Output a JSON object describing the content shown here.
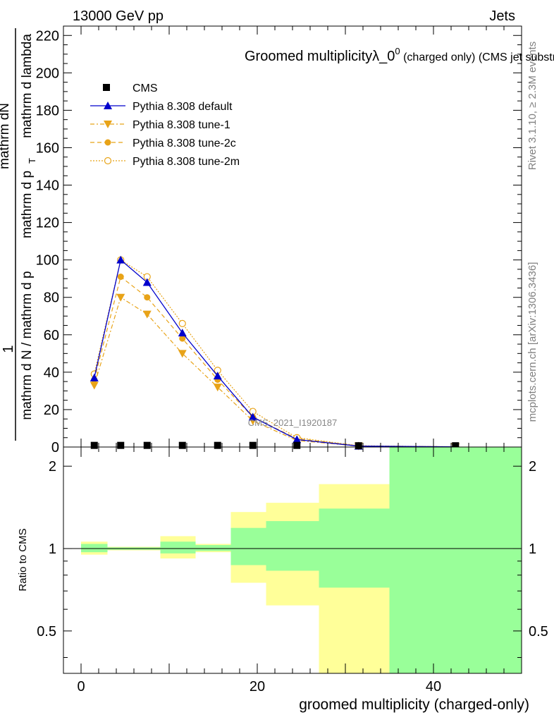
{
  "header": {
    "left": "13000 GeV pp",
    "right": "Jets"
  },
  "side_labels": {
    "rivet": "Rivet 3.1.10, ≥ 2.3M events",
    "mcplots": "mcplots.cern.ch [arXiv:1306.3436]"
  },
  "main_plot": {
    "title_main": "Groomed multiplicityλ_0",
    "title_sup": "0",
    "title_rest": " (charged only) (CMS jet substructure)",
    "ylabel_num": "1",
    "ylabel_den_top": "mathrm dN",
    "ylabel_den_line1": "mathrm d N / mathrm d p",
    "ylabel_den_line2": " mathrm d p",
    "ylabel_den_line3": " mathrm d lambda",
    "ylabel_sub": "T",
    "watermark": "CMS_2021_I1920187",
    "y_ticks": [
      "0",
      "20",
      "40",
      "60",
      "80",
      "100",
      "120",
      "140",
      "160",
      "180",
      "200",
      "220"
    ]
  },
  "ratio_plot": {
    "ylabel": "Ratio to CMS",
    "y_ticks": [
      "0.5",
      "1",
      "2"
    ],
    "x_ticks": [
      "0",
      "20",
      "40"
    ],
    "xlabel": "groomed multiplicity (charged-only)"
  },
  "legend": [
    {
      "name": "CMS"
    },
    {
      "name": "Pythia 8.308 default"
    },
    {
      "name": "Pythia 8.308 tune-1"
    },
    {
      "name": "Pythia 8.308 tune-2c"
    },
    {
      "name": "Pythia 8.308 tune-2m"
    }
  ],
  "colors": {
    "data": "#000000",
    "default": "#0000cc",
    "tunes": "#e8a317",
    "band_inner": "#99ff99",
    "band_outer": "#ffff99"
  },
  "chart_data": {
    "type": "line",
    "xlim": [
      -2,
      50
    ],
    "ylim": [
      0,
      225
    ],
    "ratio_ylim": [
      0.35,
      2.35
    ],
    "ratio_log": true,
    "bins": [
      [
        0,
        3
      ],
      [
        3,
        6
      ],
      [
        6,
        9
      ],
      [
        9,
        13
      ],
      [
        13,
        17
      ],
      [
        17,
        21
      ],
      [
        21,
        27
      ],
      [
        27,
        35
      ],
      [
        35,
        50
      ]
    ],
    "x": [
      1.5,
      4.5,
      7.5,
      11.5,
      15.5,
      19.5,
      24.5,
      31.5,
      42.5
    ],
    "cms": [
      0.5,
      0.5,
      0.5,
      0.5,
      0.5,
      0.5,
      0.5,
      0.3,
      0.3
    ],
    "series": [
      {
        "name": "Pythia 8.308 default",
        "values": [
          37,
          100,
          88,
          61,
          38,
          16,
          4,
          0.5,
          0.1
        ]
      },
      {
        "name": "Pythia 8.308 tune-1",
        "values": [
          33,
          80,
          71,
          50,
          32,
          14,
          3.5,
          0.5,
          0.1
        ]
      },
      {
        "name": "Pythia 8.308 tune-2c",
        "values": [
          36,
          91,
          80,
          58,
          36,
          16,
          4.5,
          0.6,
          0.1
        ]
      },
      {
        "name": "Pythia 8.308 tune-2m",
        "values": [
          39,
          100,
          91,
          66,
          41,
          19,
          5,
          0.7,
          0.1
        ]
      }
    ],
    "ratio_band_inner": [
      [
        0.97,
        1.04
      ],
      [
        0.99,
        1.01
      ],
      [
        0.99,
        1.01
      ],
      [
        0.96,
        1.06
      ],
      [
        0.98,
        1.03
      ],
      [
        0.87,
        1.19
      ],
      [
        0.83,
        1.26
      ],
      [
        0.72,
        1.4
      ],
      [
        0.35,
        2.35
      ]
    ],
    "ratio_band_outer": [
      [
        0.95,
        1.06
      ],
      [
        0.985,
        1.015
      ],
      [
        0.985,
        1.015
      ],
      [
        0.92,
        1.11
      ],
      [
        0.97,
        1.04
      ],
      [
        0.75,
        1.36
      ],
      [
        0.62,
        1.47
      ],
      [
        0.35,
        1.72
      ],
      [
        0.35,
        2.35
      ]
    ]
  }
}
